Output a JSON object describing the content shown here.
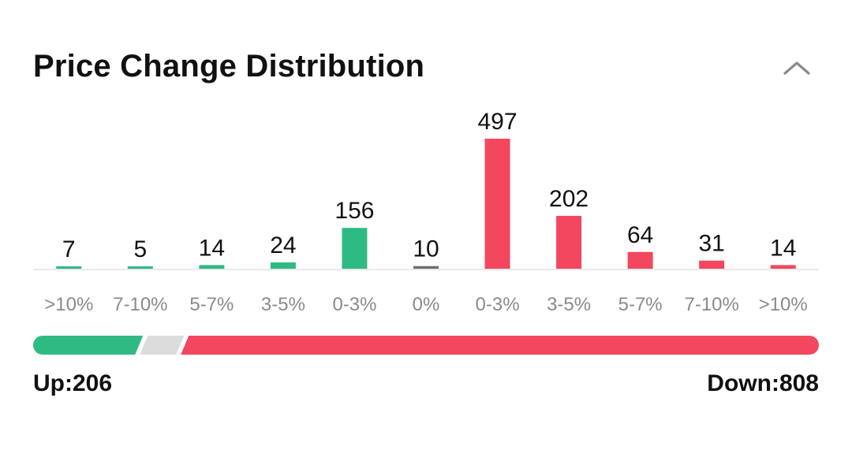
{
  "header": {
    "title": "Price Change Distribution",
    "collapse_icon": "chevron-up-icon"
  },
  "colors": {
    "up": "#2fba83",
    "flat": "#6e6e6e",
    "down": "#f2475e",
    "neutral_track": "#dcdcdc",
    "baseline": "#e9e9e9"
  },
  "chart_data": {
    "type": "bar",
    "title": "Price Change Distribution",
    "xlabel": "",
    "ylabel": "",
    "grid": false,
    "categories": [
      ">10%",
      "7-10%",
      "5-7%",
      "3-5%",
      "0-3%",
      "0%",
      "0-3%",
      "3-5%",
      "5-7%",
      "7-10%",
      ">10%"
    ],
    "values": [
      7,
      5,
      14,
      24,
      156,
      10,
      497,
      202,
      64,
      31,
      14
    ],
    "direction": [
      "up",
      "up",
      "up",
      "up",
      "up",
      "flat",
      "down",
      "down",
      "down",
      "down",
      "down"
    ],
    "ylim": [
      0,
      497
    ]
  },
  "summary": {
    "up_label": "Up:206",
    "down_label": "Down:808",
    "up_count": 206,
    "flat_count": 10,
    "down_count": 808
  }
}
